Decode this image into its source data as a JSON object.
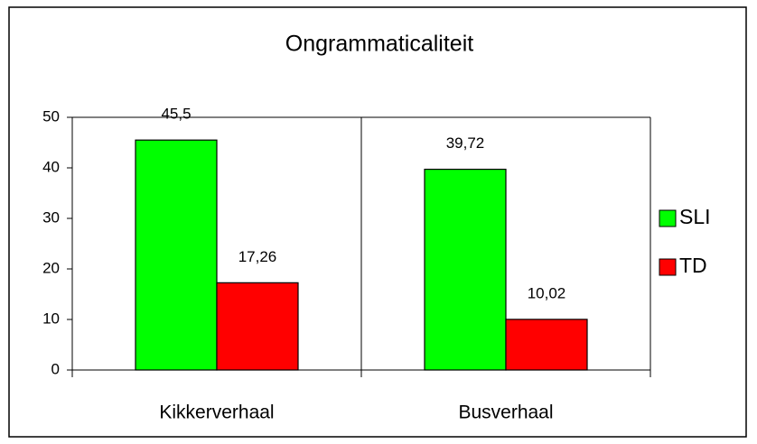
{
  "chart_data": {
    "type": "bar",
    "title": "Ongrammaticaliteit",
    "categories": [
      "Kikkerverhaal",
      "Busverhaal"
    ],
    "series": [
      {
        "name": "SLI",
        "color": "#00ff00",
        "values": [
          45.5,
          39.72
        ],
        "value_labels": [
          "45,5",
          "39,72"
        ]
      },
      {
        "name": "TD",
        "color": "#ff0000",
        "values": [
          17.26,
          10.02
        ],
        "value_labels": [
          "17,26",
          "10,02"
        ]
      }
    ],
    "ylim": [
      0,
      50
    ],
    "yticks": [
      0,
      10,
      20,
      30,
      40,
      50
    ],
    "legend": "right"
  }
}
